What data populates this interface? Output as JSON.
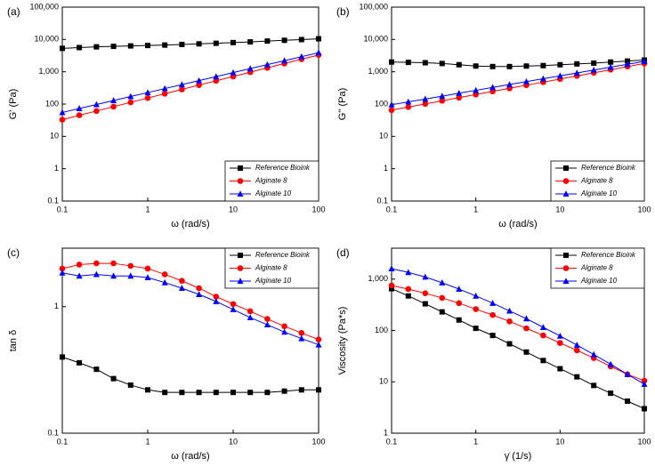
{
  "chart_data": [
    {
      "type": "line",
      "label": "(a)",
      "xlabel": "ω (rad/s)",
      "ylabel": "G' (Pa)",
      "xscale": "log",
      "yscale": "log",
      "grid": false,
      "legend": "lower right",
      "x": [
        0.1,
        0.158,
        0.251,
        0.398,
        0.631,
        1,
        1.585,
        2.512,
        3.981,
        6.31,
        10,
        15.85,
        25.12,
        39.81,
        63.1,
        100
      ],
      "xlim": [
        0.1,
        100
      ],
      "xticks": [
        0.1,
        1,
        10,
        100
      ],
      "ylim": [
        0.1,
        100000
      ],
      "yticks": [
        0.1,
        1,
        10,
        100,
        {
          "value": 1000,
          "label": "1,000"
        },
        {
          "value": 10000,
          "label": "10,000"
        },
        {
          "value": 100000,
          "label": "100,000"
        }
      ],
      "series": [
        {
          "name": "Reference Bioink",
          "color": "#000000",
          "marker": "square",
          "values": [
            5300,
            5600,
            5900,
            6100,
            6300,
            6500,
            6700,
            7000,
            7300,
            7600,
            8000,
            8400,
            8900,
            9400,
            9900,
            10500
          ]
        },
        {
          "name": "Alginate 8",
          "color": "#ff0000",
          "marker": "circle",
          "values": [
            33,
            45,
            61,
            83,
            113,
            154,
            209,
            284,
            386,
            525,
            714,
            971,
            1320,
            1800,
            2450,
            3300
          ]
        },
        {
          "name": "Alginate 10",
          "color": "#0000ff",
          "marker": "triangle",
          "values": [
            55,
            73,
            97,
            129,
            171,
            227,
            302,
            401,
            532,
            707,
            939,
            1250,
            1660,
            2200,
            2920,
            3900
          ]
        }
      ]
    },
    {
      "type": "line",
      "label": "(b)",
      "xlabel": "ω (rad/s)",
      "ylabel": "G'' (Pa)",
      "xscale": "log",
      "yscale": "log",
      "grid": false,
      "legend": "lower right",
      "x": [
        0.1,
        0.158,
        0.251,
        0.398,
        0.631,
        1,
        1.585,
        2.512,
        3.981,
        6.31,
        10,
        15.85,
        25.12,
        39.81,
        63.1,
        100
      ],
      "xlim": [
        0.1,
        100
      ],
      "xticks": [
        0.1,
        1,
        10,
        100
      ],
      "ylim": [
        0.1,
        100000
      ],
      "yticks": [
        0.1,
        1,
        10,
        100,
        {
          "value": 1000,
          "label": "1,000"
        },
        {
          "value": 10000,
          "label": "10,000"
        },
        {
          "value": 100000,
          "label": "100,000"
        }
      ],
      "series": [
        {
          "name": "Reference Bioink",
          "color": "#000000",
          "marker": "square",
          "values": [
            2000,
            1950,
            1900,
            1800,
            1650,
            1500,
            1450,
            1450,
            1500,
            1550,
            1650,
            1750,
            1850,
            2000,
            2150,
            2300
          ]
        },
        {
          "name": "Alginate 8",
          "color": "#ff0000",
          "marker": "circle",
          "values": [
            65,
            81,
            101,
            126,
            158,
            197,
            246,
            307,
            383,
            478,
            596,
            744,
            929,
            1160,
            1447,
            1800
          ]
        },
        {
          "name": "Alginate 10",
          "color": "#0000ff",
          "marker": "triangle",
          "values": [
            95,
            117,
            143,
            176,
            217,
            266,
            327,
            402,
            494,
            607,
            746,
            917,
            1127,
            1385,
            1702,
            2100
          ]
        }
      ]
    },
    {
      "type": "line",
      "label": "(c)",
      "xlabel": "ω (rad/s)",
      "ylabel": "tan δ",
      "xscale": "log",
      "yscale": "log",
      "grid": false,
      "legend": "upper right",
      "x": [
        0.1,
        0.158,
        0.251,
        0.398,
        0.631,
        1,
        1.585,
        2.512,
        3.981,
        6.31,
        10,
        15.85,
        25.12,
        39.81,
        63.1,
        100
      ],
      "xlim": [
        0.1,
        100
      ],
      "xticks": [
        0.1,
        1,
        10,
        100
      ],
      "ylim": [
        0.1,
        2.9
      ],
      "yticks": [
        0.1,
        1
      ],
      "series": [
        {
          "name": "Reference Bioink",
          "color": "#000000",
          "marker": "square",
          "values": [
            0.4,
            0.36,
            0.32,
            0.27,
            0.24,
            0.22,
            0.21,
            0.21,
            0.21,
            0.21,
            0.21,
            0.21,
            0.21,
            0.215,
            0.22,
            0.22
          ]
        },
        {
          "name": "Alginate 8",
          "color": "#ff0000",
          "marker": "circle",
          "values": [
            2.0,
            2.15,
            2.2,
            2.2,
            2.1,
            2.0,
            1.8,
            1.6,
            1.4,
            1.2,
            1.05,
            0.92,
            0.8,
            0.7,
            0.62,
            0.55
          ]
        },
        {
          "name": "Alginate 10",
          "color": "#0000ff",
          "marker": "triangle",
          "values": [
            1.85,
            1.75,
            1.8,
            1.75,
            1.75,
            1.7,
            1.55,
            1.4,
            1.25,
            1.1,
            0.95,
            0.82,
            0.72,
            0.63,
            0.56,
            0.5
          ]
        }
      ]
    },
    {
      "type": "line",
      "label": "(d)",
      "xlabel": "γ̇ (1/s)",
      "ylabel": "Viscosity (Pa*s)",
      "xscale": "log",
      "yscale": "log",
      "grid": false,
      "legend": "upper right",
      "x": [
        0.1,
        0.158,
        0.251,
        0.398,
        0.631,
        1,
        1.585,
        2.512,
        3.981,
        6.31,
        10,
        15.85,
        25.12,
        39.81,
        63.1,
        100
      ],
      "xlim": [
        0.1,
        100
      ],
      "xticks": [
        0.1,
        1,
        10,
        100
      ],
      "ylim": [
        1,
        4000
      ],
      "yticks": [
        1,
        10,
        100,
        {
          "value": 1000,
          "label": "1,000"
        }
      ],
      "series": [
        {
          "name": "Reference Bioink",
          "color": "#000000",
          "marker": "square",
          "values": [
            650,
            470,
            330,
            230,
            160,
            110,
            80,
            55,
            38,
            26,
            18,
            12.5,
            8.5,
            6,
            4.2,
            3
          ]
        },
        {
          "name": "Alginate 8",
          "color": "#ff0000",
          "marker": "circle",
          "values": [
            750,
            640,
            530,
            430,
            340,
            260,
            200,
            150,
            110,
            80,
            57,
            41,
            29,
            20,
            14,
            10.5
          ]
        },
        {
          "name": "Alginate 10",
          "color": "#0000ff",
          "marker": "triangle",
          "values": [
            1600,
            1350,
            1100,
            850,
            640,
            470,
            340,
            240,
            170,
            115,
            78,
            52,
            34,
            22,
            14,
            9
          ]
        }
      ]
    }
  ]
}
